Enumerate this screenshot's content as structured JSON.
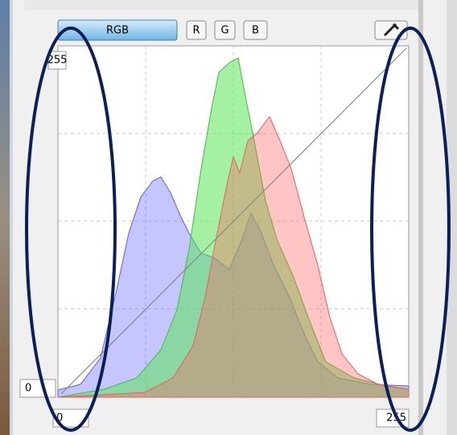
{
  "toolbar": {
    "buttons": [
      "RGB",
      "R",
      "G",
      "B"
    ]
  },
  "axis": {
    "y_top": "255",
    "y_bottom": "0",
    "x_left": "0",
    "x_right": "255"
  }
}
